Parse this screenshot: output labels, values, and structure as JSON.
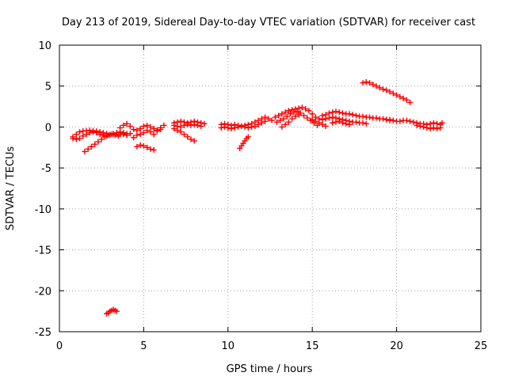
{
  "chart_data": {
    "type": "scatter",
    "title": "Day 213 of 2019, Sidereal Day-to-day VTEC variation (SDTVAR) for receiver cast",
    "xlabel": "GPS time / hours",
    "ylabel": "SDTVAR / TECUs",
    "xlim": [
      0,
      25
    ],
    "ylim": [
      -25,
      10
    ],
    "x_ticks": [
      0,
      5,
      10,
      15,
      20,
      25
    ],
    "y_ticks": [
      10,
      5,
      0,
      -5,
      -10,
      -15,
      -20,
      -25
    ],
    "grid": true,
    "marker": "plus",
    "color": "#ff0000",
    "series": [
      {
        "points": [
          [
            0.8,
            -1.2
          ],
          [
            1.0,
            -0.9
          ],
          [
            1.2,
            -0.6
          ],
          [
            1.4,
            -0.5
          ],
          [
            1.6,
            -0.45
          ],
          [
            1.8,
            -0.4
          ],
          [
            2.0,
            -0.45
          ],
          [
            2.2,
            -0.5
          ],
          [
            2.4,
            -0.6
          ],
          [
            2.6,
            -0.7
          ],
          [
            2.8,
            -0.8
          ],
          [
            3.0,
            -0.9
          ],
          [
            3.2,
            -0.8
          ],
          [
            3.4,
            -0.7
          ],
          [
            3.6,
            -0.6
          ],
          [
            3.8,
            -0.7
          ],
          [
            4.0,
            -0.8
          ],
          [
            0.8,
            -1.4
          ],
          [
            1.0,
            -1.5
          ],
          [
            1.2,
            -1.4
          ],
          [
            1.4,
            -1.1
          ],
          [
            1.6,
            -0.9
          ],
          [
            1.8,
            -0.7
          ],
          [
            2.0,
            -0.6
          ],
          [
            2.2,
            -0.7
          ],
          [
            2.4,
            -0.9
          ],
          [
            2.6,
            -1.0
          ],
          [
            2.8,
            -1.1
          ],
          [
            3.0,
            -1.0
          ],
          [
            3.2,
            -0.9
          ],
          [
            3.4,
            -0.9
          ],
          [
            3.6,
            -0.9
          ],
          [
            3.8,
            -0.9
          ],
          [
            4.0,
            -1.0
          ],
          [
            1.5,
            -3.0
          ],
          [
            1.7,
            -2.7
          ],
          [
            1.9,
            -2.4
          ],
          [
            2.1,
            -2.1
          ],
          [
            2.3,
            -1.8
          ],
          [
            2.5,
            -1.5
          ],
          [
            2.7,
            -1.2
          ],
          [
            2.9,
            -1.0
          ],
          [
            3.1,
            -0.9
          ],
          [
            3.3,
            -1.0
          ],
          [
            3.5,
            -1.1
          ],
          [
            3.6,
            -0.1
          ],
          [
            3.8,
            0.2
          ],
          [
            4.0,
            0.4
          ],
          [
            4.2,
            0.1
          ],
          [
            4.4,
            -0.3
          ],
          [
            4.6,
            -0.4
          ],
          [
            4.8,
            -0.2
          ],
          [
            5.0,
            0.1
          ],
          [
            5.2,
            0.2
          ],
          [
            5.4,
            0.0
          ],
          [
            5.6,
            -0.2
          ],
          [
            5.8,
            -0.4
          ],
          [
            6.0,
            -0.1
          ],
          [
            6.2,
            0.2
          ],
          [
            3.8,
            -0.8
          ],
          [
            4.0,
            -1.0
          ],
          [
            4.2,
            -0.8
          ],
          [
            4.4,
            -1.3
          ],
          [
            4.6,
            -1.0
          ],
          [
            4.8,
            -0.9
          ],
          [
            5.0,
            -0.7
          ],
          [
            5.2,
            -0.4
          ],
          [
            5.4,
            -0.6
          ],
          [
            5.6,
            -0.9
          ],
          [
            5.8,
            -0.5
          ],
          [
            6.0,
            -0.3
          ],
          [
            4.6,
            -2.4
          ],
          [
            4.8,
            -2.2
          ],
          [
            5.0,
            -2.3
          ],
          [
            5.2,
            -2.5
          ],
          [
            5.4,
            -2.7
          ],
          [
            5.6,
            -2.8
          ],
          [
            6.8,
            0.5
          ],
          [
            7.0,
            0.6
          ],
          [
            7.2,
            0.7
          ],
          [
            7.4,
            0.6
          ],
          [
            7.6,
            0.5
          ],
          [
            7.8,
            0.6
          ],
          [
            8.0,
            0.7
          ],
          [
            8.2,
            0.6
          ],
          [
            8.4,
            0.5
          ],
          [
            8.6,
            0.4
          ],
          [
            6.8,
            -0.2
          ],
          [
            7.0,
            -0.4
          ],
          [
            7.2,
            -0.6
          ],
          [
            7.4,
            -0.9
          ],
          [
            7.6,
            -1.2
          ],
          [
            7.8,
            -1.5
          ],
          [
            8.0,
            -1.7
          ],
          [
            6.8,
            0.2
          ],
          [
            7.0,
            0.1
          ],
          [
            7.2,
            0.0
          ],
          [
            7.4,
            0.2
          ],
          [
            7.6,
            0.3
          ],
          [
            7.8,
            0.2
          ],
          [
            8.0,
            0.3
          ],
          [
            8.2,
            0.2
          ],
          [
            8.4,
            0.1
          ],
          [
            9.6,
            0.3
          ],
          [
            9.8,
            0.4
          ],
          [
            10.0,
            0.3
          ],
          [
            10.2,
            0.2
          ],
          [
            10.4,
            0.3
          ],
          [
            10.6,
            0.2
          ],
          [
            10.8,
            0.1
          ],
          [
            11.0,
            0.2
          ],
          [
            11.2,
            0.3
          ],
          [
            11.4,
            0.4
          ],
          [
            11.6,
            0.6
          ],
          [
            11.8,
            0.8
          ],
          [
            12.0,
            1.0
          ],
          [
            12.2,
            1.2
          ],
          [
            12.4,
            1.0
          ],
          [
            12.6,
            0.8
          ],
          [
            9.6,
            -0.1
          ],
          [
            9.8,
            0.0
          ],
          [
            10.0,
            -0.1
          ],
          [
            10.2,
            -0.2
          ],
          [
            10.4,
            -0.1
          ],
          [
            10.6,
            0.0
          ],
          [
            10.8,
            0.1
          ],
          [
            11.0,
            0.0
          ],
          [
            11.2,
            -0.1
          ],
          [
            11.4,
            0.0
          ],
          [
            11.6,
            0.1
          ],
          [
            11.8,
            0.3
          ],
          [
            12.0,
            0.5
          ],
          [
            12.2,
            0.7
          ],
          [
            10.7,
            -2.6
          ],
          [
            10.8,
            -2.3
          ],
          [
            10.9,
            -2.0
          ],
          [
            11.0,
            -1.7
          ],
          [
            11.1,
            -1.4
          ],
          [
            11.2,
            -1.2
          ],
          [
            12.8,
            1.2
          ],
          [
            13.0,
            1.4
          ],
          [
            13.2,
            1.6
          ],
          [
            13.4,
            1.8
          ],
          [
            13.6,
            2.0
          ],
          [
            13.8,
            2.1
          ],
          [
            14.0,
            2.2
          ],
          [
            14.2,
            2.3
          ],
          [
            14.4,
            2.4
          ],
          [
            14.6,
            2.2
          ],
          [
            14.8,
            2.0
          ],
          [
            15.0,
            1.6
          ],
          [
            15.2,
            1.2
          ],
          [
            15.4,
            1.0
          ],
          [
            12.9,
            0.6
          ],
          [
            13.1,
            0.8
          ],
          [
            13.3,
            1.0
          ],
          [
            13.5,
            1.3
          ],
          [
            13.7,
            1.6
          ],
          [
            13.9,
            1.8
          ],
          [
            14.1,
            1.9
          ],
          [
            14.3,
            1.7
          ],
          [
            14.5,
            1.4
          ],
          [
            14.7,
            1.1
          ],
          [
            14.9,
            0.8
          ],
          [
            15.1,
            0.5
          ],
          [
            15.3,
            0.2
          ],
          [
            13.2,
            0.0
          ],
          [
            13.4,
            0.3
          ],
          [
            13.6,
            0.6
          ],
          [
            13.8,
            1.0
          ],
          [
            14.0,
            1.3
          ],
          [
            14.2,
            1.5
          ],
          [
            15.0,
            0.9
          ],
          [
            15.2,
            0.7
          ],
          [
            15.4,
            0.5
          ],
          [
            15.6,
            0.3
          ],
          [
            15.8,
            0.1
          ],
          [
            15.6,
            1.4
          ],
          [
            15.8,
            1.5
          ],
          [
            16.0,
            1.7
          ],
          [
            16.2,
            1.8
          ],
          [
            16.4,
            1.9
          ],
          [
            16.6,
            1.8
          ],
          [
            16.8,
            1.7
          ],
          [
            17.0,
            1.6
          ],
          [
            17.2,
            1.6
          ],
          [
            17.4,
            1.5
          ],
          [
            17.6,
            1.4
          ],
          [
            17.8,
            1.3
          ],
          [
            18.0,
            1.3
          ],
          [
            18.2,
            1.2
          ],
          [
            18.4,
            1.2
          ],
          [
            18.6,
            1.1
          ],
          [
            18.8,
            1.1
          ],
          [
            19.0,
            1.0
          ],
          [
            19.2,
            1.0
          ],
          [
            19.4,
            0.9
          ],
          [
            19.6,
            0.9
          ],
          [
            15.6,
            0.9
          ],
          [
            15.8,
            1.0
          ],
          [
            16.0,
            1.1
          ],
          [
            16.2,
            1.2
          ],
          [
            16.4,
            1.1
          ],
          [
            16.6,
            1.0
          ],
          [
            16.8,
            0.9
          ],
          [
            17.0,
            0.8
          ],
          [
            17.2,
            0.7
          ],
          [
            17.4,
            0.6
          ],
          [
            17.6,
            0.6
          ],
          [
            17.8,
            0.5
          ],
          [
            18.0,
            0.5
          ],
          [
            18.2,
            0.4
          ],
          [
            16.2,
            0.5
          ],
          [
            16.4,
            0.6
          ],
          [
            16.6,
            0.7
          ],
          [
            16.8,
            0.5
          ],
          [
            17.0,
            0.4
          ],
          [
            17.2,
            0.3
          ],
          [
            18.0,
            5.4
          ],
          [
            18.2,
            5.5
          ],
          [
            18.4,
            5.4
          ],
          [
            18.6,
            5.2
          ],
          [
            18.8,
            5.0
          ],
          [
            19.0,
            4.8
          ],
          [
            19.2,
            4.6
          ],
          [
            19.4,
            4.5
          ],
          [
            19.6,
            4.3
          ],
          [
            19.8,
            4.1
          ],
          [
            20.0,
            3.9
          ],
          [
            20.2,
            3.7
          ],
          [
            20.4,
            3.5
          ],
          [
            20.6,
            3.3
          ],
          [
            20.8,
            3.0
          ],
          [
            19.4,
            0.9
          ],
          [
            19.6,
            0.8
          ],
          [
            19.8,
            0.8
          ],
          [
            20.0,
            0.7
          ],
          [
            20.2,
            0.7
          ],
          [
            20.4,
            0.8
          ],
          [
            20.6,
            0.8
          ],
          [
            20.8,
            0.7
          ],
          [
            21.0,
            0.6
          ],
          [
            21.2,
            0.5
          ],
          [
            21.4,
            0.4
          ],
          [
            21.6,
            0.4
          ],
          [
            21.8,
            0.3
          ],
          [
            22.0,
            0.4
          ],
          [
            22.2,
            0.5
          ],
          [
            22.4,
            0.4
          ],
          [
            22.6,
            0.3
          ],
          [
            22.7,
            0.5
          ],
          [
            21.2,
            0.2
          ],
          [
            21.4,
            0.1
          ],
          [
            21.6,
            0.0
          ],
          [
            21.8,
            -0.1
          ],
          [
            22.0,
            -0.2
          ],
          [
            22.2,
            -0.1
          ],
          [
            22.4,
            -0.2
          ],
          [
            22.6,
            -0.1
          ],
          [
            2.8,
            -22.8
          ],
          [
            2.9,
            -22.7
          ],
          [
            3.0,
            -22.5
          ],
          [
            3.1,
            -22.4
          ],
          [
            3.2,
            -22.3
          ],
          [
            3.3,
            -22.4
          ],
          [
            3.4,
            -22.5
          ]
        ]
      }
    ]
  }
}
